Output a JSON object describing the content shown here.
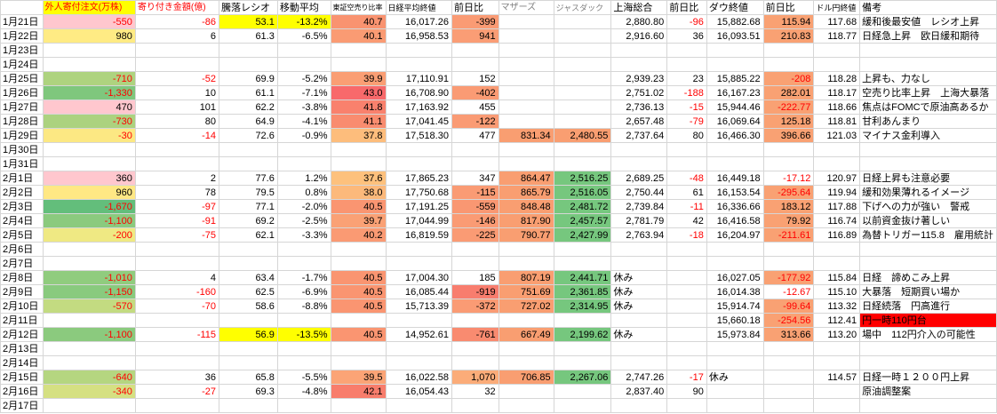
{
  "sheet": {
    "columns": {
      "widths": [
        48,
        107,
        97,
        67,
        62,
        53,
        78,
        56,
        66,
        66,
        66,
        46,
        66,
        60,
        52,
        132
      ],
      "headers": [
        {
          "label": ""
        },
        {
          "label": "外人寄付注文(万株)",
          "bg": "#FFFF00",
          "fg": "#FF0000",
          "size": 10
        },
        {
          "label": "寄り付き金額(億)",
          "fg": "#FF0000",
          "size": 10
        },
        {
          "label": "騰落レシオ",
          "size": 11
        },
        {
          "label": "移動平均",
          "size": 11
        },
        {
          "label": "東証空売り比率",
          "size": 8
        },
        {
          "label": "日経平均終値",
          "size": 9
        },
        {
          "label": "前日比",
          "size": 11
        },
        {
          "label": "マザーズ",
          "fg": "#808080",
          "size": 10
        },
        {
          "label": "ジャスダック",
          "fg": "#808080",
          "size": 9
        },
        {
          "label": "上海総合",
          "size": 11
        },
        {
          "label": "前日比",
          "size": 11
        },
        {
          "label": "ダウ終値",
          "size": 11
        },
        {
          "label": "前日比",
          "size": 11
        },
        {
          "label": "ドル円終値",
          "size": 9
        },
        {
          "label": "備考",
          "size": 11
        }
      ]
    },
    "rows": [
      [
        "1月21日",
        {
          "v": "-550",
          "bg": "#FFC7CE",
          "fg": "#FF0000"
        },
        {
          "v": "-86",
          "fg": "#FF0000"
        },
        {
          "v": "53.1",
          "bg": "#FFFF00"
        },
        {
          "v": "-13.2%",
          "bg": "#FFFF00"
        },
        {
          "v": "40.7",
          "bg": "#F99370"
        },
        "16,017.26",
        {
          "v": "-399",
          "bg": "#FA9B74"
        },
        null,
        null,
        "2,880.80",
        {
          "v": "-96",
          "fg": "#FF0000"
        },
        "15,882.68",
        {
          "v": "115.94",
          "bg": "#F9A173"
        },
        "117.68",
        "緩和後最安値　レシオ上昇"
      ],
      [
        "1月22日",
        {
          "v": "980",
          "bg": "#FFEB84"
        },
        "6",
        "61.3",
        "-6.5%",
        {
          "v": "40.1",
          "bg": "#FA9B73"
        },
        "16,958.53",
        {
          "v": "941",
          "bg": "#FA9D75"
        },
        null,
        null,
        "2,916.60",
        "36",
        "16,093.51",
        {
          "v": "210.83",
          "bg": "#F9A173"
        },
        "118.77",
        "日経急上昇　欧日緩和期待"
      ],
      [
        "1月23日",
        null,
        null,
        null,
        null,
        null,
        null,
        null,
        null,
        null,
        null,
        null,
        null,
        null,
        null,
        null
      ],
      [
        "1月24日",
        null,
        null,
        null,
        null,
        null,
        null,
        null,
        null,
        null,
        null,
        null,
        null,
        null,
        null,
        null
      ],
      [
        "1月25日",
        {
          "v": "-710",
          "bg": "#AED37F",
          "fg": "#FF0000"
        },
        {
          "v": "-52",
          "fg": "#FF0000"
        },
        "69.9",
        "-5.2%",
        {
          "v": "39.9",
          "bg": "#FA9E74"
        },
        "17,110.91",
        "152",
        null,
        null,
        "2,939.23",
        "23",
        "15,885.22",
        {
          "v": "-208",
          "bg": "#F9A173",
          "fg": "#FF0000"
        },
        "118.28",
        "上昇も、力なし"
      ],
      [
        "1月26日",
        {
          "v": "-1,330",
          "bg": "#7FC77D",
          "fg": "#FF0000"
        },
        "10",
        "61.1",
        "-7.1%",
        {
          "v": "43.0",
          "bg": "#F8696B"
        },
        "16,708.90",
        {
          "v": "-402",
          "bg": "#FA9B74"
        },
        null,
        null,
        "2,751.02",
        {
          "v": "-188",
          "fg": "#FF0000"
        },
        "16,167.23",
        {
          "v": "282.01",
          "bg": "#F9A173"
        },
        "118.17",
        "空売り比率上昇　上海大暴落"
      ],
      [
        "1月27日",
        {
          "v": "470",
          "bg": "#FFC7CE"
        },
        "101",
        "62.2",
        "-3.8%",
        {
          "v": "41.8",
          "bg": "#F9816D"
        },
        "17,163.92",
        "455",
        null,
        null,
        "2,736.13",
        {
          "v": "-15",
          "fg": "#FF0000"
        },
        "15,944.46",
        {
          "v": "-222.77",
          "bg": "#F9A173",
          "fg": "#FF0000"
        },
        "118.66",
        "焦点はFOMCで原油高あるか"
      ],
      [
        "1月28日",
        {
          "v": "-730",
          "bg": "#ACD27F",
          "fg": "#FF0000"
        },
        "80",
        "64.9",
        "-4.1%",
        {
          "v": "41.1",
          "bg": "#F98C6F"
        },
        "17,041.45",
        {
          "v": "-122",
          "bg": "#FA9B74"
        },
        null,
        null,
        "2,657.48",
        {
          "v": "-79",
          "fg": "#FF0000"
        },
        "16,069.64",
        {
          "v": "125.18",
          "bg": "#F9A173"
        },
        "118.81",
        "甘利あんまり"
      ],
      [
        "1月29日",
        {
          "v": "-30",
          "bg": "#FCE883",
          "fg": "#FF0000"
        },
        {
          "v": "-14",
          "fg": "#FF0000"
        },
        "72.6",
        "-0.9%",
        {
          "v": "37.8",
          "bg": "#FDBD7C"
        },
        "17,518.30",
        "477",
        {
          "v": "831.34",
          "bg": "#F99E71"
        },
        {
          "v": "2,480.55",
          "bg": "#F99E71"
        },
        "2,737.64",
        "80",
        "16,466.30",
        {
          "v": "396.66",
          "bg": "#F9A173"
        },
        "121.03",
        "マイナス金利導入"
      ],
      [
        "1月30日",
        null,
        null,
        null,
        null,
        null,
        null,
        null,
        null,
        null,
        null,
        null,
        null,
        null,
        null,
        null
      ],
      [
        "1月31日",
        null,
        null,
        null,
        null,
        null,
        null,
        null,
        null,
        null,
        null,
        null,
        null,
        null,
        null,
        null
      ],
      [
        "2月1日",
        {
          "v": "360",
          "bg": "#FFC7CE"
        },
        "2",
        "77.6",
        "1.2%",
        {
          "v": "37.6",
          "bg": "#FDC17D"
        },
        "17,865.23",
        "347",
        {
          "v": "864.47",
          "bg": "#F99E71"
        },
        {
          "v": "2,516.25",
          "bg": "#76C77E"
        },
        "2,689.25",
        {
          "v": "-48",
          "fg": "#FF0000"
        },
        "16,449.18",
        {
          "v": "-17.12",
          "fg": "#FF0000"
        },
        "120.97",
        "日経上昇も注意必要"
      ],
      [
        "2月2日",
        {
          "v": "960",
          "bg": "#FFE884"
        },
        "78",
        "79.5",
        "0.8%",
        {
          "v": "38.0",
          "bg": "#FCB97B"
        },
        "17,750.68",
        {
          "v": "-115",
          "bg": "#FA9B74"
        },
        {
          "v": "865.79",
          "bg": "#F99E71"
        },
        {
          "v": "2,516.05",
          "bg": "#76C77E"
        },
        "2,750.44",
        "61",
        "16,153.54",
        {
          "v": "-295.64",
          "bg": "#F9A173",
          "fg": "#FF0000"
        },
        "119.94",
        "緩和効果薄れるイメージ"
      ],
      [
        "2月3日",
        {
          "v": "-1,670",
          "bg": "#63BE7B",
          "fg": "#FF0000"
        },
        {
          "v": "-97",
          "fg": "#FF0000"
        },
        "77.1",
        "-2.0%",
        {
          "v": "40.5",
          "bg": "#FA9571"
        },
        "17,191.25",
        {
          "v": "-559",
          "bg": "#F99772"
        },
        {
          "v": "848.48",
          "bg": "#F99E71"
        },
        {
          "v": "2,481.72",
          "bg": "#76C77E"
        },
        "2,739.84",
        {
          "v": "-11",
          "fg": "#FF0000"
        },
        "16,336.66",
        {
          "v": "183.12",
          "bg": "#F9A173"
        },
        "117.88",
        "下げへの力が強い　警戒"
      ],
      [
        "2月4日",
        {
          "v": "-1,100",
          "bg": "#8BCA7E",
          "fg": "#FF0000"
        },
        {
          "v": "-91",
          "fg": "#FF0000"
        },
        "69.2",
        "-2.5%",
        {
          "v": "39.7",
          "bg": "#FAA175"
        },
        "17,044.99",
        {
          "v": "-146",
          "bg": "#FA9B74"
        },
        {
          "v": "817.90",
          "bg": "#F99E71"
        },
        {
          "v": "2,457.57",
          "bg": "#76C77E"
        },
        "2,781.79",
        "42",
        "16,416.58",
        {
          "v": "79.92",
          "bg": "#F9A173"
        },
        "116.74",
        "以前資金抜け著しい"
      ],
      [
        "2月5日",
        {
          "v": "-200",
          "bg": "#EFE983",
          "fg": "#FF0000"
        },
        {
          "v": "-75",
          "fg": "#FF0000"
        },
        "62.1",
        "-3.3%",
        {
          "v": "40.2",
          "bg": "#FA9A73"
        },
        "16,819.59",
        {
          "v": "-225",
          "bg": "#FA9B74"
        },
        {
          "v": "790.77",
          "bg": "#F99E71"
        },
        {
          "v": "2,427.99",
          "bg": "#76C77E"
        },
        "2,763.94",
        {
          "v": "-18",
          "fg": "#FF0000"
        },
        "16,204.97",
        {
          "v": "-211.61",
          "bg": "#F9A173",
          "fg": "#FF0000"
        },
        "116.89",
        "為替トリガー115.8　雇用統計"
      ],
      [
        "2月6日",
        null,
        null,
        null,
        null,
        null,
        null,
        null,
        null,
        null,
        null,
        null,
        null,
        null,
        null,
        null
      ],
      [
        "2月7日",
        null,
        null,
        null,
        null,
        null,
        null,
        null,
        null,
        null,
        null,
        null,
        null,
        null,
        null,
        null
      ],
      [
        "2月8日",
        {
          "v": "-1,010",
          "bg": "#90CC7E",
          "fg": "#FF0000"
        },
        "4",
        "63.4",
        "-1.7%",
        {
          "v": "40.5",
          "bg": "#FA9571"
        },
        "17,004.30",
        "185",
        {
          "v": "807.19",
          "bg": "#F99E71"
        },
        {
          "v": "2,441.71",
          "bg": "#76C77E"
        },
        "休み",
        null,
        "16,027.05",
        {
          "v": "-177.92",
          "bg": "#F9A173",
          "fg": "#FF0000"
        },
        "115.84",
        "日経　諦めこみ上昇"
      ],
      [
        "2月9日",
        {
          "v": "-1,150",
          "bg": "#89CA7E",
          "fg": "#FF0000"
        },
        {
          "v": "-160",
          "fg": "#FF0000"
        },
        "62.5",
        "-6.9%",
        {
          "v": "40.5",
          "bg": "#FA9571"
        },
        "16,085.44",
        {
          "v": "-919",
          "bg": "#F87D6E"
        },
        {
          "v": "751.69",
          "bg": "#F99E71"
        },
        {
          "v": "2,361.85",
          "bg": "#76C77E"
        },
        "休み",
        null,
        "16,014.38",
        {
          "v": "-12.67",
          "fg": "#FF0000"
        },
        "115.10",
        "大暴落　短期買い場か"
      ],
      [
        "2月10日",
        {
          "v": "-570",
          "bg": "#C3DB81",
          "fg": "#FF0000"
        },
        {
          "v": "-70",
          "fg": "#FF0000"
        },
        "58.6",
        "-8.8%",
        {
          "v": "40.5",
          "bg": "#FA9571"
        },
        "15,713.39",
        {
          "v": "-372",
          "bg": "#FA9B74"
        },
        {
          "v": "727.02",
          "bg": "#F99E71"
        },
        {
          "v": "2,314.95",
          "bg": "#76C77E"
        },
        "休み",
        null,
        "15,914.74",
        {
          "v": "-99.64",
          "bg": "#F9A173",
          "fg": "#FF0000"
        },
        "113.32",
        "日経続落　円高進行"
      ],
      [
        "2月11日",
        null,
        null,
        null,
        null,
        null,
        null,
        null,
        null,
        null,
        null,
        null,
        "15,660.18",
        {
          "v": "-254.56",
          "bg": "#F9A173",
          "fg": "#FF0000"
        },
        "112.41",
        {
          "v": "円一時110円台",
          "bg": "#FF0000"
        }
      ],
      [
        "2月12日",
        {
          "v": "-1,100",
          "bg": "#8BCA7E",
          "fg": "#FF0000"
        },
        {
          "v": "-115",
          "fg": "#FF0000"
        },
        {
          "v": "56.9",
          "bg": "#FFFF00"
        },
        {
          "v": "-13.5%",
          "bg": "#FFFF00"
        },
        {
          "v": "40.5",
          "bg": "#FA9571"
        },
        "14,952.61",
        {
          "v": "-761",
          "bg": "#F98B70"
        },
        {
          "v": "667.49",
          "bg": "#F99E71"
        },
        {
          "v": "2,199.62",
          "bg": "#76C77E"
        },
        "休み",
        null,
        "15,973.84",
        {
          "v": "313.66",
          "bg": "#F9A173"
        },
        "113.20",
        "場中　112円介入の可能性"
      ],
      [
        "2月13日",
        null,
        null,
        null,
        null,
        null,
        null,
        null,
        null,
        null,
        null,
        null,
        null,
        null,
        null,
        null
      ],
      [
        "2月14日",
        null,
        null,
        null,
        null,
        null,
        null,
        null,
        null,
        null,
        null,
        null,
        null,
        null,
        null,
        null
      ],
      [
        "2月15日",
        {
          "v": "-640",
          "bg": "#B5D680",
          "fg": "#FF0000"
        },
        "36",
        "65.8",
        "-5.5%",
        {
          "v": "39.5",
          "bg": "#FBA476"
        },
        "16,022.58",
        {
          "v": "1,070",
          "bg": "#FBAC79"
        },
        {
          "v": "706.85",
          "bg": "#F99E71"
        },
        {
          "v": "2,267.06",
          "bg": "#76C77E"
        },
        "2,747.26",
        {
          "v": "-17",
          "fg": "#FF0000"
        },
        "休み",
        null,
        "114.57",
        "日経一時１２００円上昇"
      ],
      [
        "2月16日",
        {
          "v": "-340",
          "bg": "#D5E082",
          "fg": "#FF0000"
        },
        {
          "v": "-27",
          "fg": "#FF0000"
        },
        "69.3",
        "-4.8%",
        {
          "v": "42.1",
          "bg": "#F87D6C"
        },
        "16,054.43",
        "32",
        null,
        null,
        "2,837.40",
        "90",
        null,
        null,
        null,
        "原油調整案"
      ],
      [
        "2月17日",
        null,
        null,
        null,
        null,
        null,
        null,
        null,
        null,
        null,
        null,
        null,
        null,
        null,
        null,
        null
      ]
    ]
  }
}
